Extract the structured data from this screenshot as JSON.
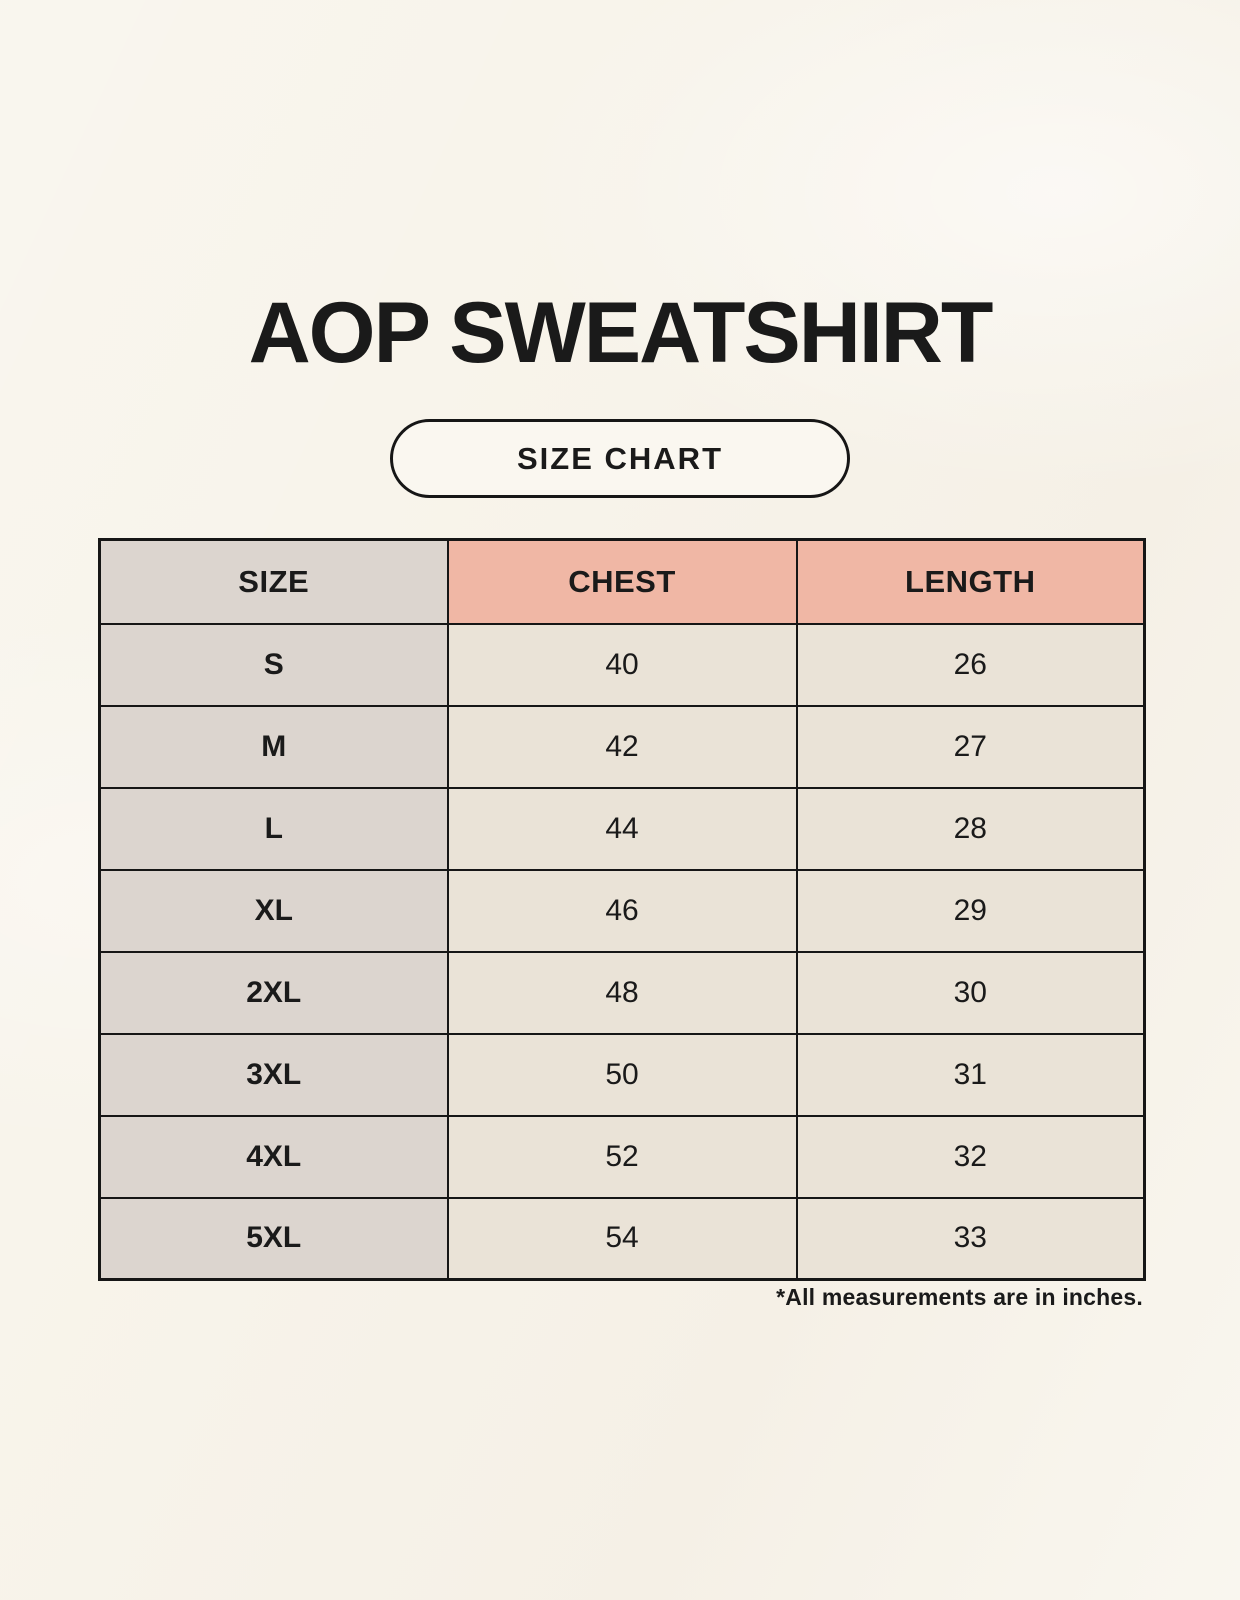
{
  "page": {
    "title": "AOP SWEATSHIRT",
    "badge_label": "SIZE CHART",
    "footnote": "*All measurements are in inches."
  },
  "colors": {
    "background": "#f8f4eb",
    "border": "#161616",
    "text": "#1a1a1a",
    "size_column": "#dcd5cf",
    "header_accent": "#f0b7a5",
    "data_cell": "#eae3d7"
  },
  "chart_data": {
    "type": "table",
    "title": "AOP SWEATSHIRT",
    "subtitle": "SIZE CHART",
    "columns": [
      "SIZE",
      "CHEST",
      "LENGTH"
    ],
    "units_note": "*All measurements are in inches.",
    "rows": [
      {
        "size": "S",
        "chest": "40",
        "length": "26"
      },
      {
        "size": "M",
        "chest": "42",
        "length": "27"
      },
      {
        "size": "L",
        "chest": "44",
        "length": "28"
      },
      {
        "size": "XL",
        "chest": "46",
        "length": "29"
      },
      {
        "size": "2XL",
        "chest": "48",
        "length": "30"
      },
      {
        "size": "3XL",
        "chest": "50",
        "length": "31"
      },
      {
        "size": "4XL",
        "chest": "52",
        "length": "32"
      },
      {
        "size": "5XL",
        "chest": "54",
        "length": "33"
      }
    ]
  }
}
